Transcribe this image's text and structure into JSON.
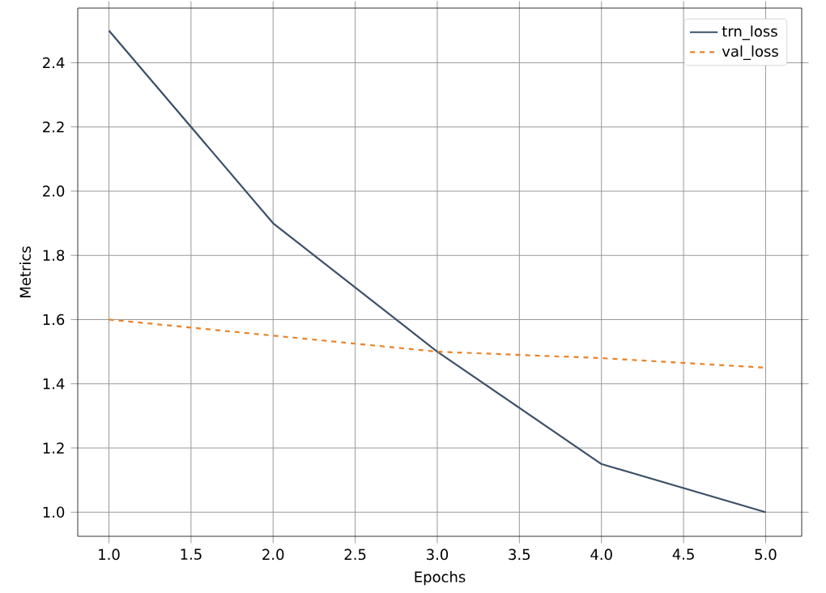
{
  "chart_data": {
    "type": "line",
    "xlabel": "Epochs",
    "ylabel": "Metrics",
    "x": [
      1,
      2,
      3,
      4,
      5
    ],
    "series": [
      {
        "name": "trn_loss",
        "color": "#3b5068",
        "values": [
          2.5,
          1.9,
          1.5,
          1.15,
          1.0
        ],
        "line_style": "solid"
      },
      {
        "name": "val_loss",
        "color": "#e8832a",
        "values": [
          1.6,
          1.55,
          1.5,
          1.48,
          1.45
        ],
        "line_style": "dashed"
      }
    ],
    "xlim": [
      0.81,
      5.22
    ],
    "ylim": [
      0.925,
      2.57
    ],
    "xticks": [
      {
        "value": 1,
        "label": "1.0"
      },
      1.5,
      {
        "value": 2,
        "label": "2.0"
      },
      2.5,
      {
        "value": 3,
        "label": "3.0"
      },
      3.5,
      {
        "value": 4,
        "label": "4.0"
      },
      4.5,
      {
        "value": 5,
        "label": "5.0"
      }
    ],
    "yticks": [
      {
        "value": 1,
        "label": "1.0"
      },
      1.2,
      1.4,
      1.6,
      1.8,
      {
        "value": 2,
        "label": "2.0"
      },
      2.2,
      2.4
    ],
    "grid": true,
    "legend": "top right",
    "marker": "none"
  }
}
